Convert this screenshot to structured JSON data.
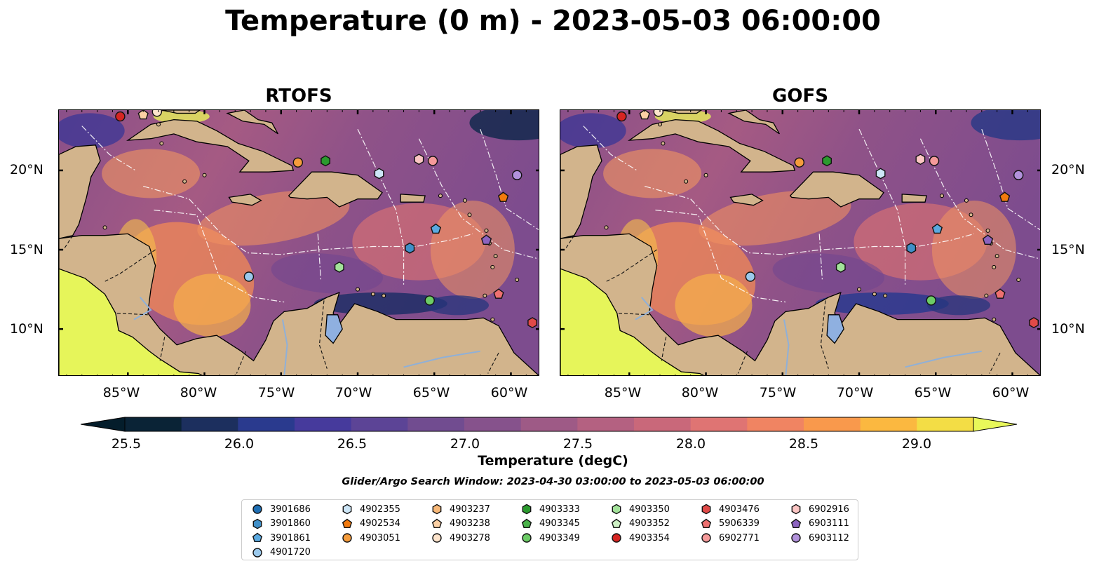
{
  "title": "Temperature (0 m) - 2023-05-03 06:00:00",
  "panels": [
    {
      "title": "RTOFS",
      "model": "rtofs"
    },
    {
      "title": "GOFS",
      "model": "gofs"
    }
  ],
  "lon_ticks": [
    "85°W",
    "80°W",
    "75°W",
    "70°W",
    "65°W",
    "60°W"
  ],
  "lat_ticks": [
    "20°N",
    "15°N",
    "10°N"
  ],
  "colorbar": {
    "label": "Temperature (degC)",
    "ticks": [
      "25.5",
      "26.0",
      "26.5",
      "27.0",
      "27.5",
      "28.0",
      "28.5",
      "29.0"
    ],
    "min": 25.25,
    "max": 29.25,
    "colors": [
      "#0a2336",
      "#1c2f5e",
      "#2a3a8e",
      "#463a9c",
      "#5c4496",
      "#714c90",
      "#86528c",
      "#9e5a86",
      "#b46181",
      "#c9687a",
      "#df7473",
      "#f08462",
      "#f9994c",
      "#fbb840",
      "#f3dd45"
    ],
    "extend_low": "#041d2b",
    "extend_high": "#e8f85a"
  },
  "subtitle": "Glider/Argo Search Window: 2023-04-30 03:00:00 to 2023-05-03 06:00:00",
  "legend": [
    {
      "id": "3901686",
      "shape": "circle",
      "color": "#1f6fb4"
    },
    {
      "id": "3901860",
      "shape": "hexagon",
      "color": "#3f8fc8"
    },
    {
      "id": "3901861",
      "shape": "pentagon",
      "color": "#5aa9e0"
    },
    {
      "id": "4901720",
      "shape": "circle",
      "color": "#9bc9ec"
    },
    {
      "id": "4902355",
      "shape": "hexagon",
      "color": "#cde6f7"
    },
    {
      "id": "4902534",
      "shape": "pentagon",
      "color": "#f27a0e"
    },
    {
      "id": "4903051",
      "shape": "circle",
      "color": "#f59c3c"
    },
    {
      "id": "4903237",
      "shape": "hexagon",
      "color": "#f8b878"
    },
    {
      "id": "4903238",
      "shape": "pentagon",
      "color": "#fbd0a4"
    },
    {
      "id": "4903278",
      "shape": "circle",
      "color": "#fde4cc"
    },
    {
      "id": "4903333",
      "shape": "hexagon",
      "color": "#2b9a2e"
    },
    {
      "id": "4903345",
      "shape": "pentagon",
      "color": "#4ab34a"
    },
    {
      "id": "4903349",
      "shape": "circle",
      "color": "#6ccc66"
    },
    {
      "id": "4903350",
      "shape": "hexagon",
      "color": "#a3e29a"
    },
    {
      "id": "4903352",
      "shape": "pentagon",
      "color": "#cdf0c4"
    },
    {
      "id": "4903354",
      "shape": "circle",
      "color": "#d62522"
    },
    {
      "id": "4903476",
      "shape": "hexagon",
      "color": "#e04a48"
    },
    {
      "id": "5906339",
      "shape": "pentagon",
      "color": "#ee7070"
    },
    {
      "id": "6902771",
      "shape": "circle",
      "color": "#f59a9a"
    },
    {
      "id": "6902916",
      "shape": "hexagon",
      "color": "#fbc5c3"
    },
    {
      "id": "6903111",
      "shape": "pentagon",
      "color": "#8c63c0"
    },
    {
      "id": "6903112",
      "shape": "circle",
      "color": "#b292dc"
    }
  ],
  "platforms": [
    {
      "id": "4903354",
      "lon": -85.5,
      "lat": 23.4
    },
    {
      "id": "4903238",
      "lon": -84.0,
      "lat": 23.5
    },
    {
      "id": "4903278",
      "lon": -83.1,
      "lat": 23.7
    },
    {
      "id": "4903051",
      "lon": -73.9,
      "lat": 20.5
    },
    {
      "id": "4903333",
      "lon": -72.1,
      "lat": 20.6
    },
    {
      "id": "4902355",
      "lon": -68.6,
      "lat": 19.8
    },
    {
      "id": "6902916",
      "lon": -66.0,
      "lat": 20.7
    },
    {
      "id": "6902771",
      "lon": -65.1,
      "lat": 20.6
    },
    {
      "id": "6903112",
      "lon": -59.6,
      "lat": 19.7
    },
    {
      "id": "4902534",
      "lon": -60.5,
      "lat": 18.3
    },
    {
      "id": "3901861",
      "lon": -64.9,
      "lat": 16.3
    },
    {
      "id": "6903111",
      "lon": -61.6,
      "lat": 15.6
    },
    {
      "id": "3901860",
      "lon": -66.6,
      "lat": 15.1
    },
    {
      "id": "4903350",
      "lon": -71.2,
      "lat": 13.9
    },
    {
      "id": "4901720",
      "lon": -77.1,
      "lat": 13.3
    },
    {
      "id": "4903349",
      "lon": -65.3,
      "lat": 11.8
    },
    {
      "id": "5906339",
      "lon": -60.8,
      "lat": 12.2
    },
    {
      "id": "4903476",
      "lon": -58.6,
      "lat": 10.4
    }
  ],
  "map_extent": {
    "lon_min": -89.5,
    "lon_max": -58.1,
    "lat_min": 7.0,
    "lat_max": 23.8
  }
}
